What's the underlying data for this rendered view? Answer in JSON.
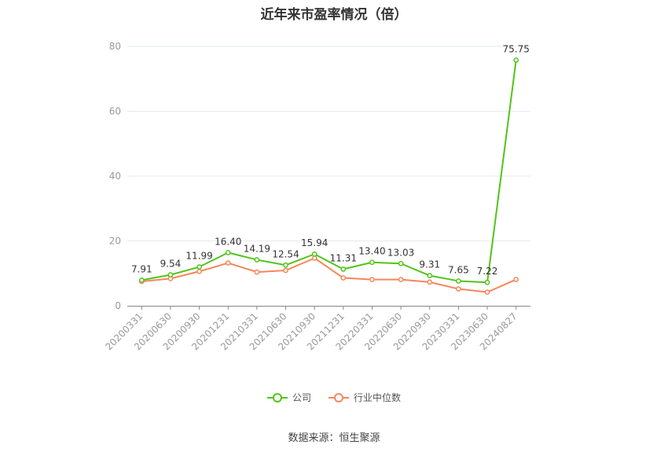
{
  "chart_data": {
    "type": "line",
    "title": "近年来市盈率情况（倍）",
    "categories": [
      "20200331",
      "20200630",
      "20200930",
      "20201231",
      "20210331",
      "20210630",
      "20210930",
      "20211231",
      "20220331",
      "20220630",
      "20220930",
      "20230331",
      "20230630",
      "20240827"
    ],
    "series": [
      {
        "name": "公司",
        "color": "#52c41a",
        "values": [
          7.91,
          9.54,
          11.99,
          16.4,
          14.19,
          12.54,
          15.94,
          11.31,
          13.4,
          13.03,
          9.31,
          7.65,
          7.22,
          75.75
        ],
        "labels": [
          "7.91",
          "9.54",
          "11.99",
          "16.40",
          "14.19",
          "12.54",
          "15.94",
          "11.31",
          "13.40",
          "13.03",
          "9.31",
          "7.65",
          "7.22",
          "75.75"
        ]
      },
      {
        "name": "行业中位数",
        "color": "#f5865a",
        "values": [
          7.5,
          8.4,
          10.6,
          13.2,
          10.4,
          10.9,
          14.7,
          8.6,
          8.1,
          8.1,
          7.3,
          5.2,
          4.2,
          8.1
        ]
      }
    ],
    "yticks": [
      "0",
      "20",
      "40",
      "60",
      "80"
    ],
    "ylim": [
      0,
      80
    ],
    "grid": true,
    "legend_position": "bottom"
  },
  "source_note": "数据来源：恒生聚源"
}
